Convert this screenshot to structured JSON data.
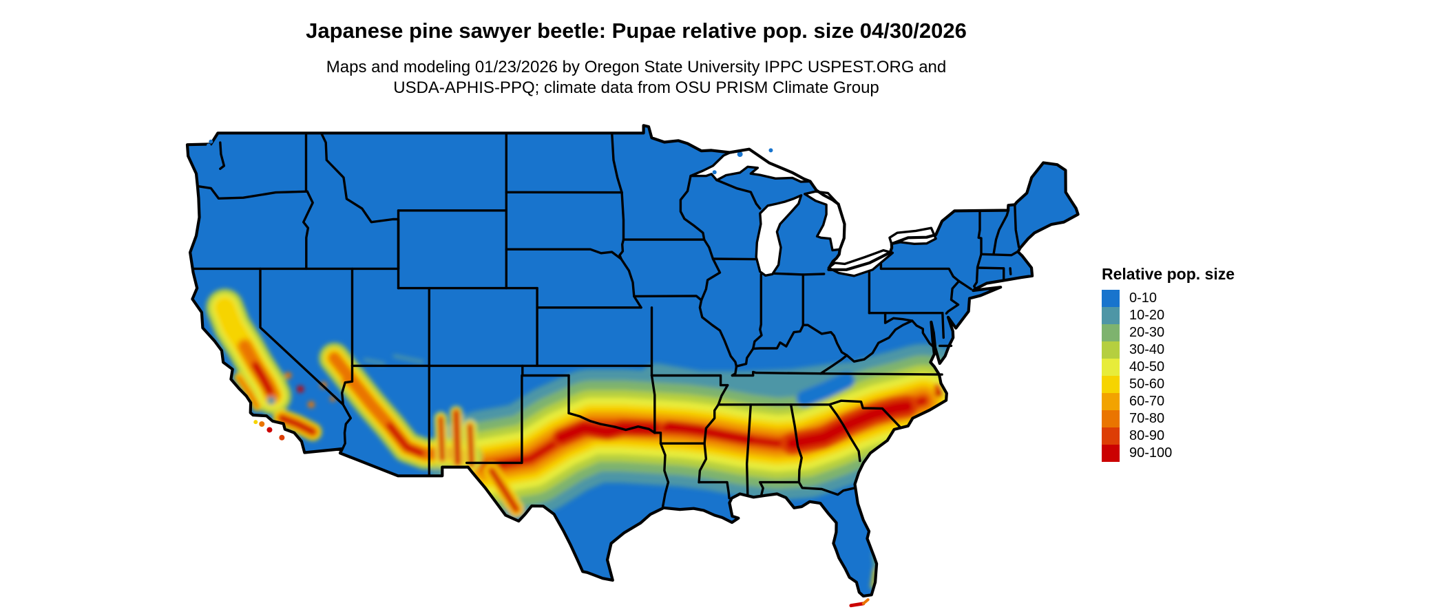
{
  "title": {
    "text": "Japanese pine sawyer beetle: Pupae relative pop. size 04/30/2026"
  },
  "subtitle": {
    "line1": "Maps and modeling 01/23/2026 by Oregon State University IPPC USPEST.ORG and",
    "line2": "USDA-APHIS-PPQ; climate data from OSU PRISM Climate Group"
  },
  "legend": {
    "title": "Relative pop. size",
    "items": [
      {
        "label": "0-10",
        "color": "#1874CD"
      },
      {
        "label": "10-20",
        "color": "#4E96A6"
      },
      {
        "label": "20-30",
        "color": "#7EB36E"
      },
      {
        "label": "30-40",
        "color": "#B5CF3F"
      },
      {
        "label": "40-50",
        "color": "#E7EC3A"
      },
      {
        "label": "50-60",
        "color": "#F6D400"
      },
      {
        "label": "60-70",
        "color": "#F2A300"
      },
      {
        "label": "70-80",
        "color": "#EA7500"
      },
      {
        "label": "80-90",
        "color": "#DD3E05"
      },
      {
        "label": "90-100",
        "color": "#CB0101"
      }
    ]
  },
  "map": {
    "name": "Contiguous United States map of Japanese pine sawyer beetle pupae relative population size",
    "land_color": "#1874CD",
    "border_color": "#000000",
    "lake_color": "#FFFFFF",
    "background": "#FFFFFF"
  }
}
